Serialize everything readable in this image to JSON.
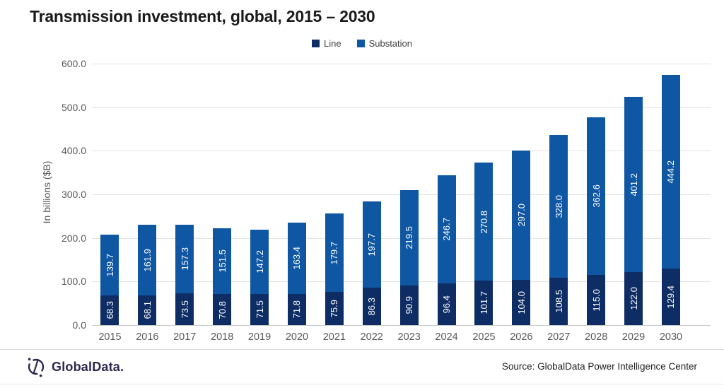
{
  "title": "Transmission investment, global, 2015 – 2030",
  "chart_data": {
    "type": "bar",
    "stacked": true,
    "title": "Transmission investment, global, 2015 – 2030",
    "categories": [
      "2015",
      "2016",
      "2017",
      "2018",
      "2019",
      "2020",
      "2021",
      "2022",
      "2023",
      "2024",
      "2025",
      "2026",
      "2027",
      "2028",
      "2029",
      "2030"
    ],
    "series": [
      {
        "name": "Line",
        "color": "#0e2d64",
        "values": [
          68.3,
          68.1,
          73.5,
          70.8,
          71.5,
          71.8,
          75.9,
          86.3,
          90.9,
          96.4,
          101.7,
          104.0,
          108.5,
          115.0,
          122.0,
          129.4
        ]
      },
      {
        "name": "Substation",
        "color": "#1057a3",
        "values": [
          139.7,
          161.9,
          157.3,
          151.5,
          147.2,
          163.4,
          179.7,
          197.7,
          219.5,
          246.7,
          270.8,
          297.0,
          328.0,
          362.6,
          401.2,
          444.2
        ]
      }
    ],
    "xlabel": "",
    "ylabel": "In billions ($B)",
    "ylim": [
      0,
      600
    ],
    "yticks": [
      "0.0",
      "100.0",
      "200.0",
      "300.0",
      "400.0",
      "500.0",
      "600.0"
    ],
    "grid": true,
    "legend_position": "top-center",
    "value_label_format": "one-decimal",
    "value_label_color": "#ffffff"
  },
  "footer": {
    "brand": "GlobalData.",
    "source": "Source: GlobalData Power Intelligence Center"
  }
}
